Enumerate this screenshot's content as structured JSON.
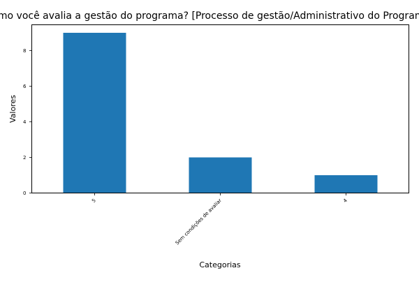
{
  "chart_data": {
    "type": "bar",
    "title": "Como você avalia a gestão do programa? [Processo de gestão/Administrativo do Programa]",
    "xlabel": "Categorias",
    "ylabel": "Valores",
    "categories": [
      "5",
      "Sem condições de avaliar",
      "4"
    ],
    "values": [
      9,
      2,
      1
    ],
    "ylim": [
      0,
      9.45
    ],
    "yticks": [
      0,
      2,
      4,
      6,
      8
    ],
    "bar_color": "#1f77b4",
    "grid": false,
    "legend": "none"
  }
}
